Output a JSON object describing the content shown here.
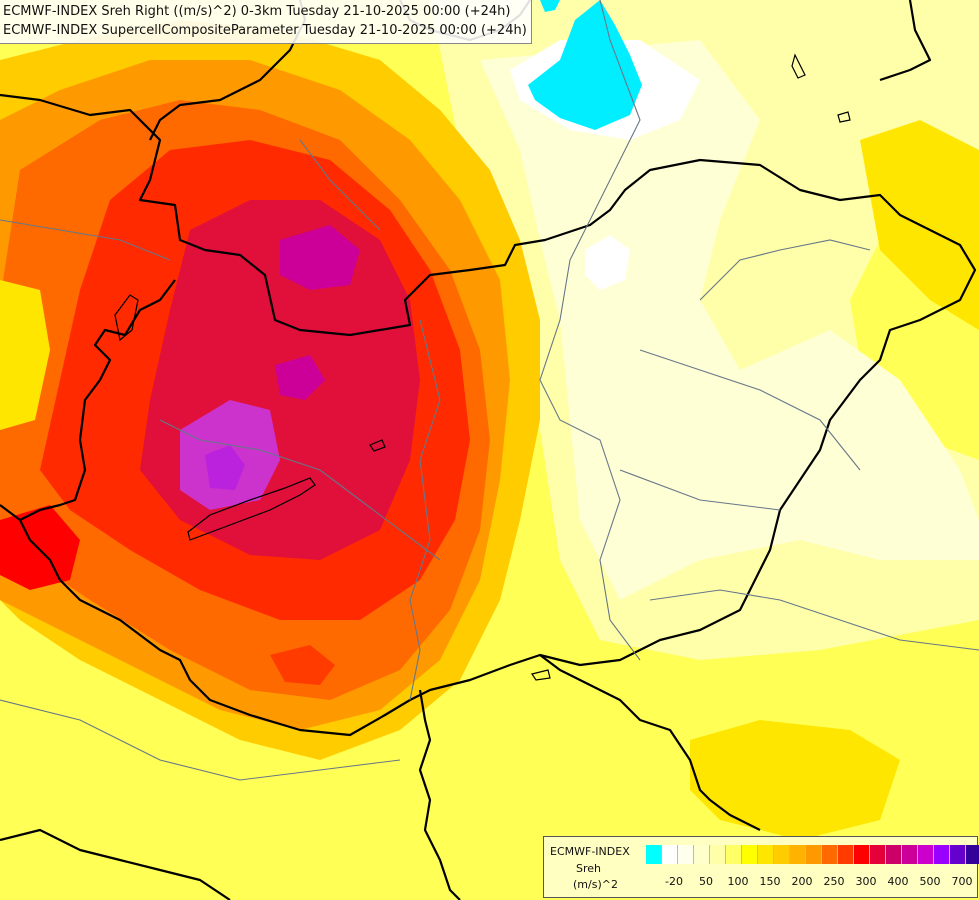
{
  "title": {
    "line1": "ECMWF-INDEX Sreh Right ((m/s)^2) 0-3km Tuesday 21-10-2025 00:00 (+24h)",
    "line2": "ECMWF-INDEX SupercellCompositeParameter Tuesday 21-10-2025 00:00 (+24h)"
  },
  "legend": {
    "model": "ECMWF-INDEX",
    "variable": "Sreh",
    "unit": "(m/s)^2",
    "colors": [
      "#00ffff",
      "#ffffff",
      "#ffffee",
      "#ffffcc",
      "#ffffaa",
      "#ffff66",
      "#ffff00",
      "#ffe600",
      "#ffcc00",
      "#ffb300",
      "#ff9900",
      "#ff6a00",
      "#ff3b00",
      "#ff0000",
      "#e6003a",
      "#cc0066",
      "#cc0099",
      "#cc00cc",
      "#9900ff",
      "#6600cc",
      "#330099",
      "#000080"
    ],
    "tick_labels": [
      "-20",
      "50",
      "100",
      "150",
      "200",
      "250",
      "300",
      "400",
      "500",
      "700"
    ]
  },
  "colors": {
    "background_level": "#ffff66",
    "border_line": "#000000",
    "river_line": "#667788"
  }
}
